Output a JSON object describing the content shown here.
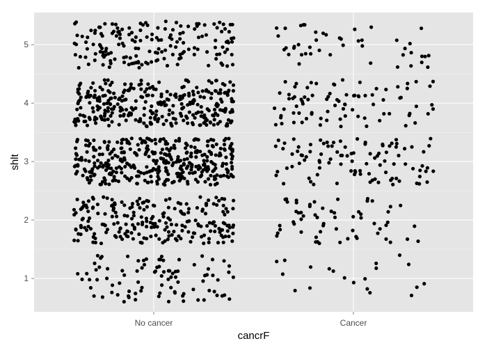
{
  "chart_data": {
    "type": "scatter",
    "title": "",
    "xlabel": "cancrF",
    "ylabel": "shlt",
    "categories": [
      "No cancer",
      "Cancer"
    ],
    "yticks": [
      1,
      2,
      3,
      4,
      5
    ],
    "ylim": [
      0.43,
      5.55
    ],
    "jitter": {
      "x": 0.4,
      "y": 0.4
    },
    "counts": {
      "No cancer": {
        "1": 90,
        "2": 230,
        "3": 380,
        "4": 320,
        "5": 170
      },
      "Cancer": {
        "1": 20,
        "2": 60,
        "3": 100,
        "4": 85,
        "5": 45
      }
    },
    "grid": true,
    "legend": "none",
    "colors": {
      "panel": "#e5e5e5",
      "grid_major": "#ffffff",
      "grid_minor": "#f2f2f2",
      "point": "#000000",
      "tick_label": "#4d4d4d"
    }
  }
}
